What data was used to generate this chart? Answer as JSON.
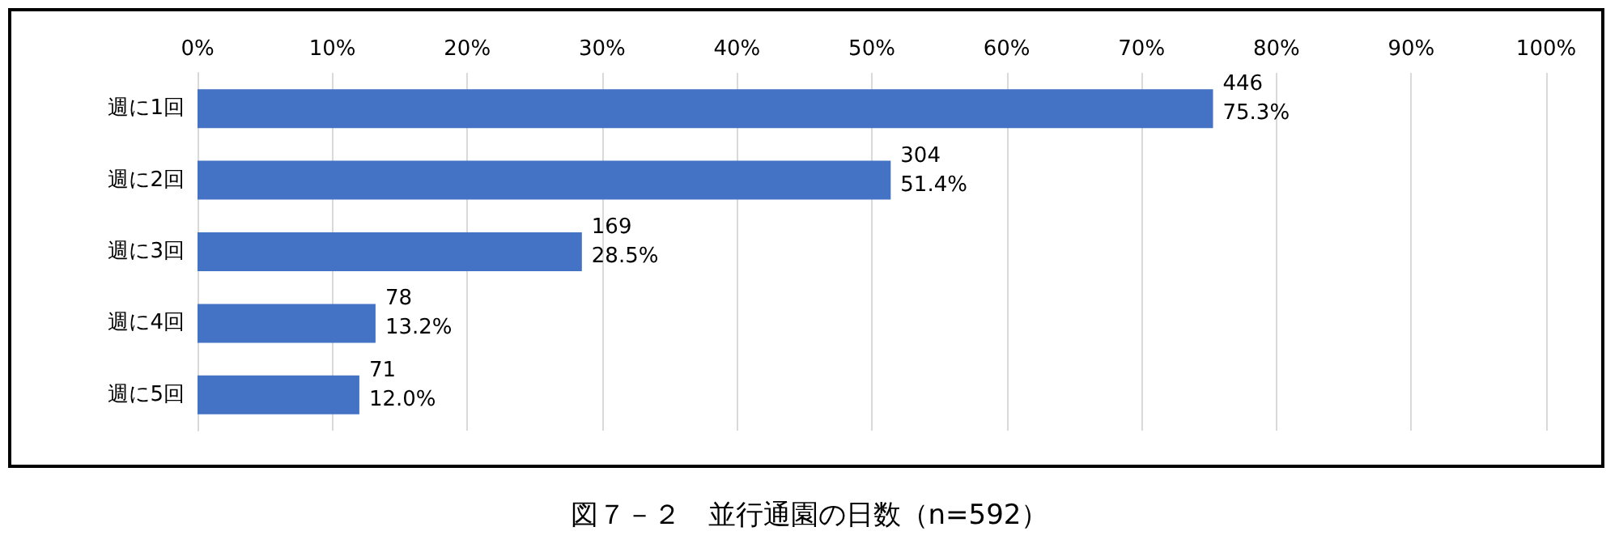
{
  "chart_data": {
    "type": "bar",
    "orientation": "horizontal",
    "title": "図７－２　並行通園の日数（n=592）",
    "categories": [
      "週に1回",
      "週に2回",
      "週に3回",
      "週に4回",
      "週に5回"
    ],
    "values": [
      75.3,
      51.4,
      28.5,
      13.2,
      12.0
    ],
    "value_labels": [
      "446\n75.3%",
      "304\n51.4%",
      "169\n28.5%",
      "78\n13.2%",
      "71\n12.0%"
    ],
    "color": "#4472c4",
    "xlim": [
      0,
      100
    ],
    "xticks": [
      {
        "value": 0,
        "label": "0%"
      },
      {
        "value": 10,
        "label": "10%"
      },
      {
        "value": 20,
        "label": "20%"
      },
      {
        "value": 30,
        "label": "30%"
      },
      {
        "value": 40,
        "label": "40%"
      },
      {
        "value": 50,
        "label": "50%"
      },
      {
        "value": 60,
        "label": "60%"
      },
      {
        "value": 70,
        "label": "70%"
      },
      {
        "value": 80,
        "label": "80%"
      },
      {
        "value": 90,
        "label": "90%"
      },
      {
        "value": 100,
        "label": "100%"
      }
    ],
    "grid": "x"
  }
}
